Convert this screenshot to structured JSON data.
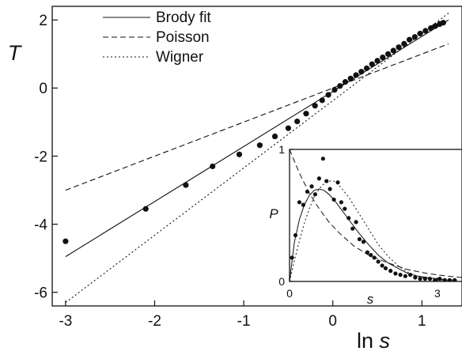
{
  "chart_data": [
    {
      "type": "scatter",
      "xlabel": "ln s",
      "ylabel": "T",
      "xlim": [
        -3.15,
        1.45
      ],
      "ylim": [
        -6.4,
        2.4
      ],
      "xticks": [
        -3,
        -2,
        -1,
        0,
        1
      ],
      "yticks": [
        -6,
        -4,
        -2,
        0,
        2
      ],
      "grid": false,
      "legend_position": "top-left",
      "legend": [
        "Brody fit",
        "Poisson",
        "Wigner"
      ],
      "series": [
        {
          "name": "data",
          "style": "points",
          "x": [
            -3.0,
            -2.1,
            -1.65,
            -1.35,
            -1.05,
            -0.82,
            -0.65,
            -0.5,
            -0.4,
            -0.3,
            -0.2,
            -0.12,
            -0.05,
            0.02,
            0.08,
            0.14,
            0.2,
            0.26,
            0.32,
            0.38,
            0.44,
            0.5,
            0.56,
            0.62,
            0.68,
            0.74,
            0.8,
            0.86,
            0.92,
            0.98,
            1.04,
            1.1,
            1.15,
            1.2,
            1.24
          ],
          "y": [
            -4.5,
            -3.55,
            -2.85,
            -2.3,
            -1.95,
            -1.68,
            -1.42,
            -1.18,
            -0.98,
            -0.75,
            -0.52,
            -0.36,
            -0.2,
            -0.05,
            0.06,
            0.18,
            0.28,
            0.38,
            0.48,
            0.58,
            0.7,
            0.8,
            0.9,
            1.0,
            1.1,
            1.2,
            1.3,
            1.42,
            1.5,
            1.6,
            1.68,
            1.76,
            1.82,
            1.88,
            1.92
          ]
        },
        {
          "name": "Brody fit",
          "style": "solid",
          "x": [
            -3.0,
            1.3
          ],
          "y": [
            -4.95,
            2.0
          ]
        },
        {
          "name": "Poisson",
          "style": "dashed",
          "x": [
            -3.0,
            1.3
          ],
          "y": [
            -3.0,
            1.3
          ]
        },
        {
          "name": "Wigner",
          "style": "dotted",
          "x": [
            -3.0,
            1.3
          ],
          "y": [
            -6.3,
            2.2
          ]
        }
      ]
    },
    {
      "type": "line",
      "inset": true,
      "xlabel": "s",
      "ylabel": "P",
      "xlim": [
        0,
        3.5
      ],
      "ylim": [
        0,
        1
      ],
      "xticks": [
        0,
        3
      ],
      "yticks": [
        0,
        1
      ],
      "series": [
        {
          "name": "data",
          "style": "points",
          "x": [
            0.05,
            0.12,
            0.2,
            0.28,
            0.36,
            0.45,
            0.52,
            0.6,
            0.68,
            0.75,
            0.82,
            0.9,
            0.98,
            1.05,
            1.12,
            1.2,
            1.28,
            1.35,
            1.42,
            1.5,
            1.58,
            1.65,
            1.72,
            1.8,
            1.88,
            1.95,
            2.05,
            2.15,
            2.25,
            2.35,
            2.45,
            2.55,
            2.65,
            2.75,
            2.85,
            2.95,
            3.05,
            3.15,
            3.25,
            3.35
          ],
          "y": [
            0.18,
            0.35,
            0.6,
            0.58,
            0.68,
            0.72,
            0.66,
            0.78,
            0.93,
            0.76,
            0.7,
            0.62,
            0.75,
            0.6,
            0.55,
            0.48,
            0.4,
            0.45,
            0.32,
            0.3,
            0.22,
            0.2,
            0.18,
            0.15,
            0.12,
            0.1,
            0.08,
            0.06,
            0.05,
            0.04,
            0.05,
            0.03,
            0.02,
            0.02,
            0.02,
            0.01,
            0.02,
            0.01,
            0.01,
            0.01
          ]
        },
        {
          "name": "Brody fit",
          "style": "solid",
          "x": [
            0,
            0.1,
            0.2,
            0.3,
            0.4,
            0.5,
            0.6,
            0.7,
            0.8,
            0.9,
            1.0,
            1.2,
            1.4,
            1.6,
            1.8,
            2.0,
            2.2,
            2.4,
            2.6,
            2.8,
            3.0,
            3.2,
            3.4
          ],
          "y": [
            0.0,
            0.3,
            0.47,
            0.58,
            0.65,
            0.69,
            0.7,
            0.69,
            0.66,
            0.62,
            0.57,
            0.47,
            0.37,
            0.28,
            0.2,
            0.14,
            0.1,
            0.06,
            0.04,
            0.03,
            0.02,
            0.01,
            0.01
          ]
        },
        {
          "name": "Poisson",
          "style": "dashed",
          "x": [
            0,
            0.2,
            0.4,
            0.6,
            0.8,
            1.0,
            1.3,
            1.6,
            2.0,
            2.4,
            2.8,
            3.2,
            3.5
          ],
          "y": [
            1.0,
            0.82,
            0.67,
            0.55,
            0.45,
            0.37,
            0.27,
            0.2,
            0.14,
            0.09,
            0.06,
            0.04,
            0.03
          ]
        },
        {
          "name": "Wigner",
          "style": "dotted",
          "x": [
            0,
            0.1,
            0.2,
            0.3,
            0.4,
            0.5,
            0.6,
            0.7,
            0.8,
            0.9,
            1.0,
            1.2,
            1.4,
            1.6,
            1.8,
            2.0,
            2.2,
            2.4,
            2.6,
            2.8,
            3.0,
            3.2,
            3.4
          ],
          "y": [
            0.0,
            0.16,
            0.31,
            0.44,
            0.55,
            0.64,
            0.7,
            0.74,
            0.76,
            0.76,
            0.73,
            0.64,
            0.52,
            0.4,
            0.28,
            0.19,
            0.12,
            0.07,
            0.04,
            0.02,
            0.01,
            0.01,
            0.0
          ]
        }
      ]
    }
  ]
}
